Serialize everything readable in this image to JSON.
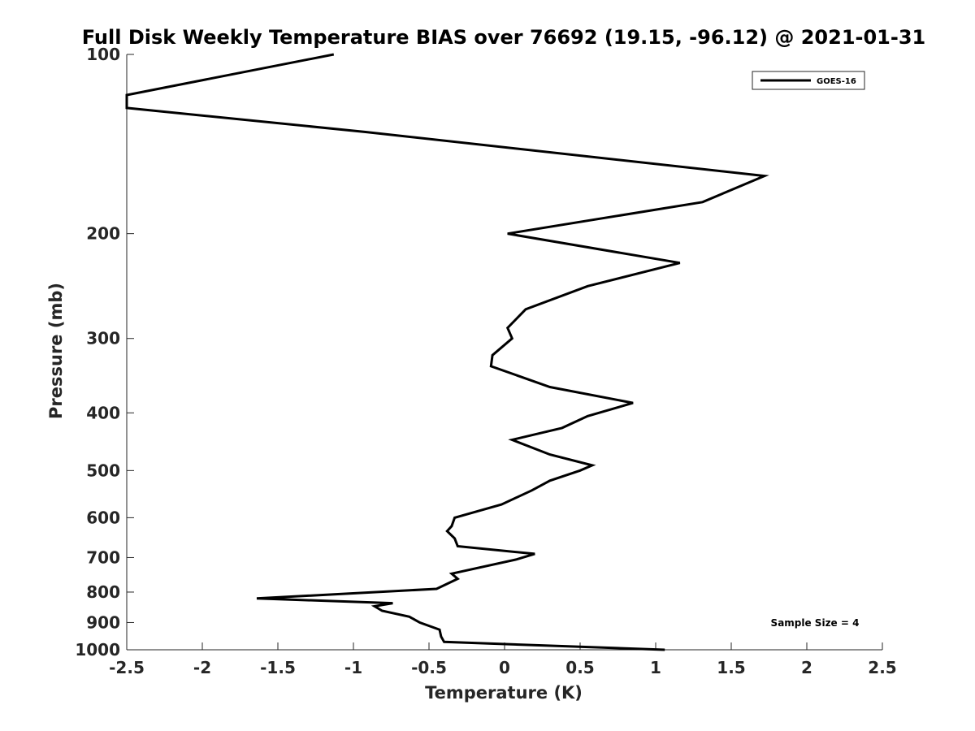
{
  "chart_data": {
    "type": "line",
    "title": "Full Disk Weekly Temperature BIAS over 76692 (19.15, -96.12) @ 2021-01-31",
    "xlabel": "Temperature (K)",
    "ylabel": "Pressure (mb)",
    "xlim": [
      -2.5,
      2.5
    ],
    "ylim": [
      100,
      1000
    ],
    "y_scale": "log",
    "y_reversed": true,
    "xticks": [
      -2.5,
      -2,
      -1.5,
      -1,
      -0.5,
      0,
      0.5,
      1,
      1.5,
      2,
      2.5
    ],
    "xtick_labels": [
      "-2.5",
      "-2",
      "-1.5",
      "-1",
      "-0.5",
      "0",
      "0.5",
      "1",
      "1.5",
      "2",
      "2.5"
    ],
    "yticks": [
      100,
      200,
      300,
      400,
      500,
      600,
      700,
      800,
      900,
      1000
    ],
    "ytick_labels": [
      "100",
      "200",
      "300",
      "400",
      "500",
      "600",
      "700",
      "800",
      "900",
      "1000"
    ],
    "grid": false,
    "legend_position": "top-right",
    "annotation": "Sample Size = 4",
    "series": [
      {
        "name": "GOES-16",
        "color": "#000000",
        "points": [
          [
            -1.13,
            100
          ],
          [
            -2.5,
            117
          ],
          [
            -2.5,
            123
          ],
          [
            -0.92,
            135
          ],
          [
            1.72,
            160
          ],
          [
            1.31,
            177
          ],
          [
            0.02,
            200
          ],
          [
            1.16,
            224
          ],
          [
            0.55,
            245
          ],
          [
            0.14,
            268
          ],
          [
            0.02,
            288
          ],
          [
            0.05,
            300
          ],
          [
            -0.08,
            320
          ],
          [
            -0.09,
            334
          ],
          [
            0.3,
            362
          ],
          [
            0.85,
            385
          ],
          [
            0.55,
            405
          ],
          [
            0.38,
            424
          ],
          [
            0.05,
            444
          ],
          [
            0.3,
            470
          ],
          [
            0.58,
            490
          ],
          [
            0.5,
            500
          ],
          [
            0.3,
            520
          ],
          [
            0.18,
            540
          ],
          [
            -0.02,
            570
          ],
          [
            -0.33,
            600
          ],
          [
            -0.35,
            620
          ],
          [
            -0.38,
            632
          ],
          [
            -0.33,
            650
          ],
          [
            -0.31,
            670
          ],
          [
            0.2,
            690
          ],
          [
            0.08,
            705
          ],
          [
            -0.35,
            745
          ],
          [
            -0.31,
            760
          ],
          [
            -0.45,
            790
          ],
          [
            -1.64,
            820
          ],
          [
            -0.74,
            835
          ],
          [
            -0.86,
            845
          ],
          [
            -0.81,
            860
          ],
          [
            -0.63,
            880
          ],
          [
            -0.56,
            900
          ],
          [
            -0.43,
            925
          ],
          [
            -0.42,
            950
          ],
          [
            -0.4,
            970
          ],
          [
            1.06,
            1000
          ]
        ]
      }
    ]
  }
}
